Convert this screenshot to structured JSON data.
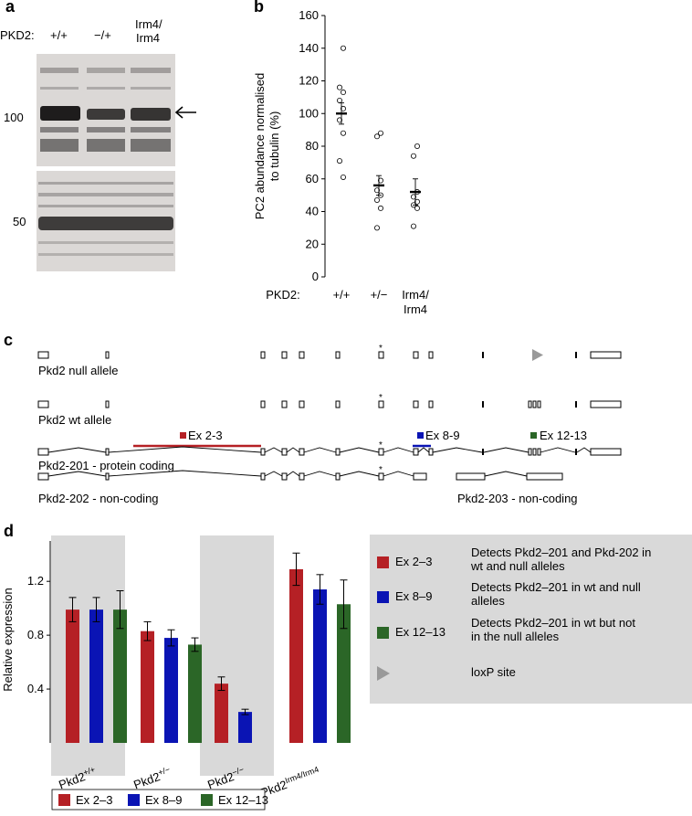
{
  "panel_a": {
    "letter": "a",
    "pkd2_label": "PKD2:",
    "genotypes": [
      "+/+",
      "−/+",
      "Irm4/\nIrm4"
    ],
    "genotype_line1": [
      "+/+",
      "−/+",
      "Irm4/"
    ],
    "genotype_line2": [
      "",
      "",
      "Irm4"
    ],
    "marker_upper": "100",
    "marker_lower": "50",
    "arrow": "arrow-left-icon"
  },
  "panel_b": {
    "letter": "b",
    "pkd2_label": "PKD2:"
  },
  "chart_data": [
    {
      "type": "scatter",
      "ylabel": "PC2 abundance normalised to tubulin (%)",
      "ylabel_line1": "PC2 abundance normalised",
      "ylabel_line2": "to tubulin (%)",
      "ylim": [
        0,
        160
      ],
      "yticks": [
        0,
        20,
        40,
        60,
        80,
        100,
        120,
        140,
        160
      ],
      "categories": [
        "+/+",
        "+/−",
        "Irm4/Irm4"
      ],
      "category_line1": [
        "+/+",
        "+/−",
        "Irm4/"
      ],
      "category_line2": [
        "",
        "",
        "Irm4"
      ],
      "points": [
        [
          140,
          116,
          113,
          108,
          103,
          96,
          88,
          71,
          61
        ],
        [
          88,
          86,
          59,
          53,
          50,
          47,
          42,
          30
        ],
        [
          80,
          74,
          52,
          49,
          46,
          44,
          42,
          31
        ]
      ],
      "means": [
        100,
        56,
        52
      ],
      "sem": [
        6.5,
        6,
        8
      ],
      "grid": false
    },
    {
      "type": "bar",
      "ylabel": "Relative expression",
      "ylim": [
        0,
        1.5
      ],
      "yticks": [
        0.4,
        0.8,
        1.2
      ],
      "categories": [
        "Pkd2+/+",
        "Pkd2+/−",
        "Pkd2−/−",
        "Pkd2Irm4/Irm4"
      ],
      "category_base": [
        "Pkd2",
        "Pkd2",
        "Pkd2",
        "Pkd2"
      ],
      "category_sup": [
        "+/+",
        "+/−",
        "−/−",
        "Irm4/Irm4"
      ],
      "series": [
        {
          "name": "Ex 2–3",
          "color": "#b52025",
          "values": [
            0.99,
            0.83,
            0.44,
            1.29
          ],
          "errors": [
            0.09,
            0.07,
            0.05,
            0.12
          ]
        },
        {
          "name": "Ex 8–9",
          "color": "#0a14b4",
          "values": [
            0.99,
            0.78,
            0.23,
            1.14
          ],
          "errors": [
            0.09,
            0.06,
            0.02,
            0.11
          ]
        },
        {
          "name": "Ex 12–13",
          "color": "#2b6627",
          "values": [
            0.99,
            0.73,
            null,
            1.03
          ],
          "errors": [
            0.14,
            0.05,
            null,
            0.18
          ]
        }
      ],
      "shaded_groups": [
        0,
        2
      ],
      "legend_placement": "bottom",
      "grid": false
    }
  ],
  "panel_c": {
    "letter": "c",
    "null_allele": "Pkd2 null allele",
    "wt_allele": "Pkd2 wt allele",
    "t201": "Pkd2-201 - protein coding",
    "t202": "Pkd2-202 - non-coding",
    "t203": "Pkd2-203 - non-coding",
    "amp1": "Ex 2-3",
    "amp2": "Ex 8-9",
    "amp3": "Ex 12-13",
    "star": "*",
    "colors": {
      "red": "#b52025",
      "blue": "#0a14b4",
      "green": "#2b6627",
      "loxp": "#999999"
    }
  },
  "panel_d": {
    "letter": "d",
    "legend_box": [
      {
        "label": "Ex 2–3",
        "color": "#b52025",
        "line1": "Detects Pkd2–201 and Pkd-202 in",
        "line2": "wt and null alleles"
      },
      {
        "label": "Ex 8–9",
        "color": "#0a14b4",
        "line1": "Detects Pkd2–201 in wt and null",
        "line2": "alleles"
      },
      {
        "label": "Ex 12–13",
        "color": "#2b6627",
        "line1": "Detects Pkd2–201 in wt but not",
        "line2": "in the null alleles"
      }
    ],
    "loxp_label": "loxP site",
    "loxp_icon": "triangle-right-icon"
  }
}
